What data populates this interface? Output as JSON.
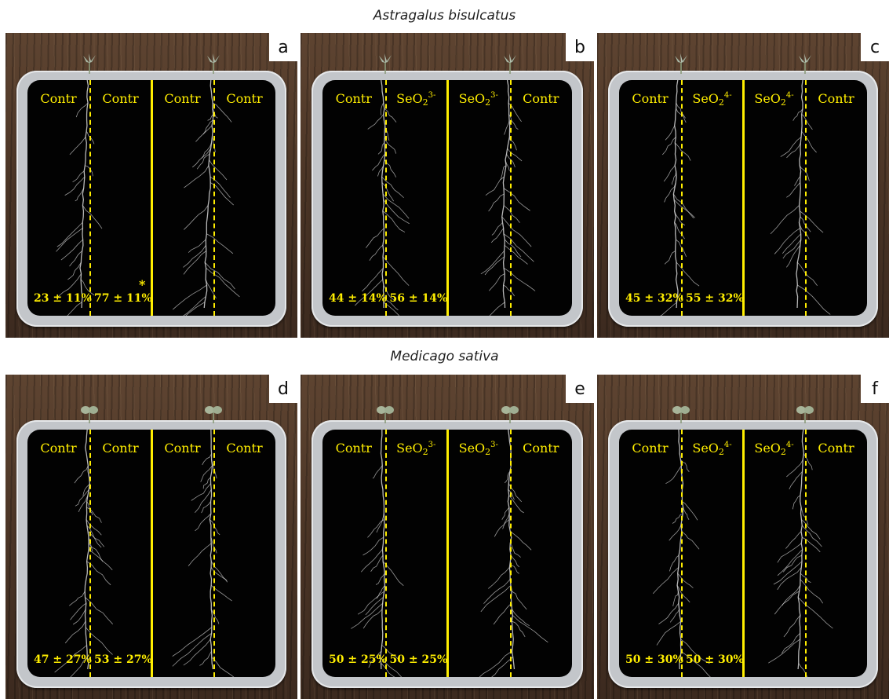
{
  "species_top": "Astragalus bisulcatus",
  "species_bottom": "Medicago sativa",
  "colors": {
    "label": "#ffee00",
    "plate": "#020202",
    "wood": "#4b3526",
    "root": "#d8d8d8"
  },
  "panels": [
    {
      "letter": "a",
      "labels": [
        {
          "name": "Contr",
          "sub": "",
          "sup": ""
        },
        {
          "name": "Contr",
          "sub": "",
          "sup": ""
        },
        {
          "name": "Contr",
          "sub": "",
          "sup": ""
        },
        {
          "name": "Contr",
          "sub": "",
          "sup": ""
        }
      ],
      "left_pct": "23 ± 11%",
      "right_pct": "77 ± 11%",
      "significance": "*"
    },
    {
      "letter": "b",
      "labels": [
        {
          "name": "Contr",
          "sub": "",
          "sup": ""
        },
        {
          "name": "SeO",
          "sub": "2",
          "sup": "3-"
        },
        {
          "name": "SeO",
          "sub": "2",
          "sup": "3-"
        },
        {
          "name": "Contr",
          "sub": "",
          "sup": ""
        }
      ],
      "left_pct": "44 ± 14%",
      "right_pct": "56 ± 14%",
      "significance": ""
    },
    {
      "letter": "c",
      "labels": [
        {
          "name": "Contr",
          "sub": "",
          "sup": ""
        },
        {
          "name": "SeO",
          "sub": "2",
          "sup": "4-"
        },
        {
          "name": "SeO",
          "sub": "2",
          "sup": "4-"
        },
        {
          "name": "Contr",
          "sub": "",
          "sup": ""
        }
      ],
      "left_pct": "45 ± 32%",
      "right_pct": "55 ± 32%",
      "significance": ""
    },
    {
      "letter": "d",
      "labels": [
        {
          "name": "Contr",
          "sub": "",
          "sup": ""
        },
        {
          "name": "Contr",
          "sub": "",
          "sup": ""
        },
        {
          "name": "Contr",
          "sub": "",
          "sup": ""
        },
        {
          "name": "Contr",
          "sub": "",
          "sup": ""
        }
      ],
      "left_pct": "47 ± 27%",
      "right_pct": "53 ± 27%",
      "significance": ""
    },
    {
      "letter": "e",
      "labels": [
        {
          "name": "Contr",
          "sub": "",
          "sup": ""
        },
        {
          "name": "SeO",
          "sub": "2",
          "sup": "3-"
        },
        {
          "name": "SeO",
          "sub": "2",
          "sup": "3-"
        },
        {
          "name": "Contr",
          "sub": "",
          "sup": ""
        }
      ],
      "left_pct": "50 ± 25%",
      "right_pct": "50 ± 25%",
      "significance": ""
    },
    {
      "letter": "f",
      "labels": [
        {
          "name": "Contr",
          "sub": "",
          "sup": ""
        },
        {
          "name": "SeO",
          "sub": "2",
          "sup": "4-"
        },
        {
          "name": "SeO",
          "sub": "2",
          "sup": "4-"
        },
        {
          "name": "Contr",
          "sub": "",
          "sup": ""
        }
      ],
      "left_pct": "50 ± 30%",
      "right_pct": "50 ± 30%",
      "significance": ""
    }
  ]
}
